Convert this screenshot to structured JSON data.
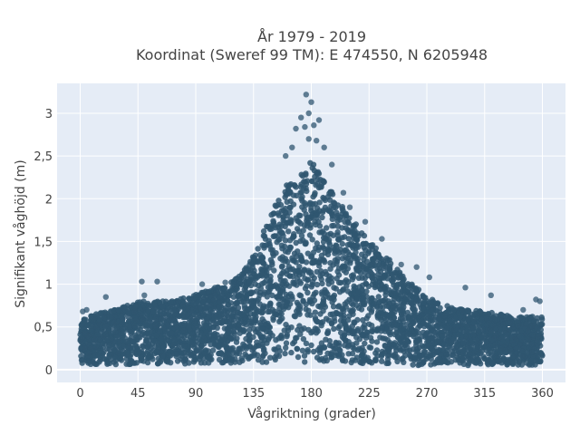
{
  "chart_data": {
    "type": "scatter",
    "title_lines": [
      "År 1979 - 2019",
      "Koordinat (Sweref 99 TM): E 474550, N 6205948"
    ],
    "xlabel": "Vågriktning (grader)",
    "ylabel": "Signifikant våghöjd (m)",
    "xlim": [
      -18,
      378
    ],
    "ylim": [
      -0.15,
      3.35
    ],
    "x_ticks": [
      0,
      45,
      90,
      135,
      180,
      225,
      270,
      315,
      360
    ],
    "x_tick_labels": [
      "0",
      "45",
      "90",
      "135",
      "180",
      "225",
      "270",
      "315",
      "360"
    ],
    "y_ticks": [
      0,
      0.5,
      1,
      1.5,
      2,
      2.5,
      3
    ],
    "y_tick_labels": [
      "0",
      "0,5",
      "1",
      "1,5",
      "2",
      "2,5",
      "3"
    ],
    "grid": true,
    "marker_color": "#2f5670",
    "plot_background": "#e5ecf6",
    "envelope": {
      "x": [
        0,
        20,
        45,
        70,
        90,
        110,
        125,
        140,
        150,
        160,
        170,
        180,
        190,
        200,
        210,
        225,
        240,
        255,
        270,
        290,
        315,
        340,
        360
      ],
      "y_low": [
        0.06,
        0.06,
        0.06,
        0.06,
        0.07,
        0.07,
        0.07,
        0.07,
        0.08,
        0.08,
        0.08,
        0.08,
        0.08,
        0.08,
        0.07,
        0.07,
        0.06,
        0.05,
        0.05,
        0.05,
        0.05,
        0.05,
        0.05
      ],
      "y_high": [
        0.6,
        0.68,
        0.8,
        0.8,
        0.88,
        0.98,
        1.1,
        1.5,
        1.9,
        2.15,
        2.3,
        2.45,
        2.2,
        2.0,
        1.8,
        1.5,
        1.3,
        1.05,
        0.85,
        0.72,
        0.68,
        0.62,
        0.62
      ]
    },
    "outliers": [
      {
        "x": 176,
        "y": 3.22
      },
      {
        "x": 180,
        "y": 3.13
      },
      {
        "x": 178,
        "y": 3.0
      },
      {
        "x": 172,
        "y": 2.95
      },
      {
        "x": 186,
        "y": 2.92
      },
      {
        "x": 168,
        "y": 2.82
      },
      {
        "x": 175,
        "y": 2.84
      },
      {
        "x": 182,
        "y": 2.86
      },
      {
        "x": 178,
        "y": 2.7
      },
      {
        "x": 184,
        "y": 2.68
      },
      {
        "x": 190,
        "y": 2.6
      },
      {
        "x": 165,
        "y": 2.6
      },
      {
        "x": 160,
        "y": 2.5
      },
      {
        "x": 196,
        "y": 2.4
      },
      {
        "x": 205,
        "y": 2.07
      },
      {
        "x": 210,
        "y": 1.9
      },
      {
        "x": 222,
        "y": 1.73
      },
      {
        "x": 235,
        "y": 1.53
      },
      {
        "x": 250,
        "y": 1.23
      },
      {
        "x": 262,
        "y": 1.2
      },
      {
        "x": 272,
        "y": 1.08
      },
      {
        "x": 300,
        "y": 0.96
      },
      {
        "x": 320,
        "y": 0.87
      },
      {
        "x": 345,
        "y": 0.7
      },
      {
        "x": 355,
        "y": 0.82
      },
      {
        "x": 358,
        "y": 0.8
      },
      {
        "x": 48,
        "y": 1.03
      },
      {
        "x": 60,
        "y": 1.03
      },
      {
        "x": 50,
        "y": 0.87
      },
      {
        "x": 20,
        "y": 0.85
      },
      {
        "x": 95,
        "y": 1.0
      },
      {
        "x": 105,
        "y": 0.96
      },
      {
        "x": 113,
        "y": 1.02
      },
      {
        "x": 5,
        "y": 0.7
      },
      {
        "x": 2,
        "y": 0.68
      }
    ]
  }
}
